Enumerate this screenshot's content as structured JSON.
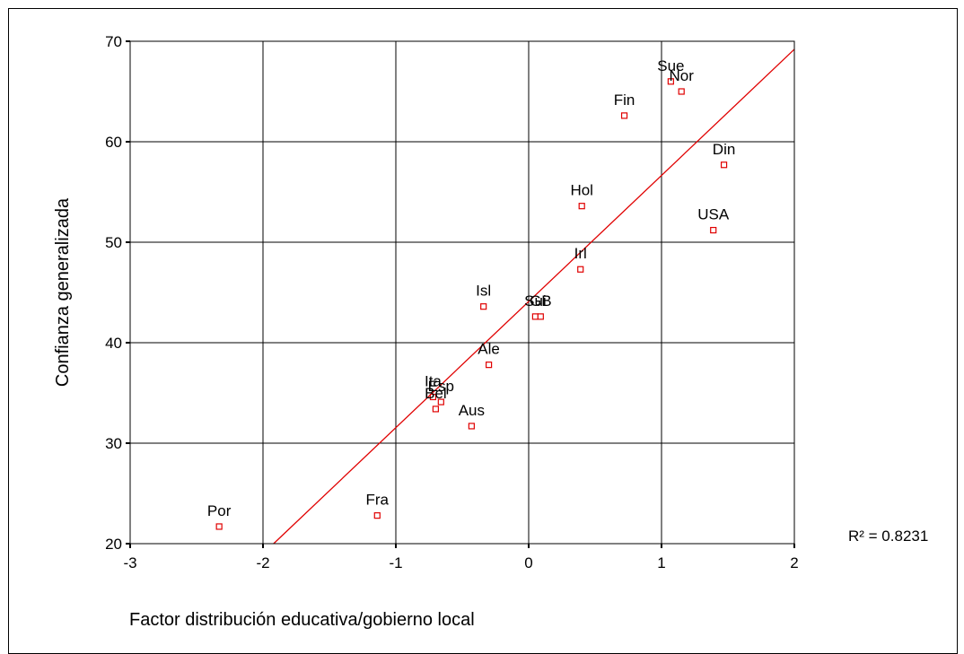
{
  "chart_data": {
    "type": "scatter",
    "title": "",
    "xlabel": "Factor distribución educativa/gobierno local",
    "ylabel": "Confianza generalizada",
    "xlim": [
      -3,
      2
    ],
    "ylim": [
      20,
      70
    ],
    "xticks": [
      -3,
      -2,
      -1,
      0,
      1,
      2
    ],
    "yticks": [
      20,
      30,
      40,
      50,
      60,
      70
    ],
    "grid": true,
    "r2_label": "R² = 0.8231",
    "marker_color": "#e00000",
    "line_color": "#e00000",
    "points": [
      {
        "label": "Sue",
        "x": 1.07,
        "y": 66.0
      },
      {
        "label": "Nor",
        "x": 1.15,
        "y": 65.0
      },
      {
        "label": "Fin",
        "x": 0.72,
        "y": 62.6
      },
      {
        "label": "Din",
        "x": 1.47,
        "y": 57.7
      },
      {
        "label": "Hol",
        "x": 0.4,
        "y": 53.6
      },
      {
        "label": "USA",
        "x": 1.39,
        "y": 51.2
      },
      {
        "label": "Irl",
        "x": 0.39,
        "y": 47.3
      },
      {
        "label": "Isl",
        "x": -0.34,
        "y": 43.6
      },
      {
        "label": "Sui",
        "x": 0.05,
        "y": 42.6
      },
      {
        "label": "GB",
        "x": 0.09,
        "y": 42.6
      },
      {
        "label": "Ale",
        "x": -0.3,
        "y": 37.8
      },
      {
        "label": "Ita",
        "x": -0.72,
        "y": 34.6
      },
      {
        "label": "Esp",
        "x": -0.66,
        "y": 34.1
      },
      {
        "label": "Bel",
        "x": -0.7,
        "y": 33.4
      },
      {
        "label": "Aus",
        "x": -0.43,
        "y": 31.7
      },
      {
        "label": "Fra",
        "x": -1.14,
        "y": 22.8
      },
      {
        "label": "Por",
        "x": -2.33,
        "y": 21.7
      }
    ],
    "fit_line": {
      "x1": -1.92,
      "y1": 20,
      "x2": 2.0,
      "y2": 69.2
    }
  }
}
